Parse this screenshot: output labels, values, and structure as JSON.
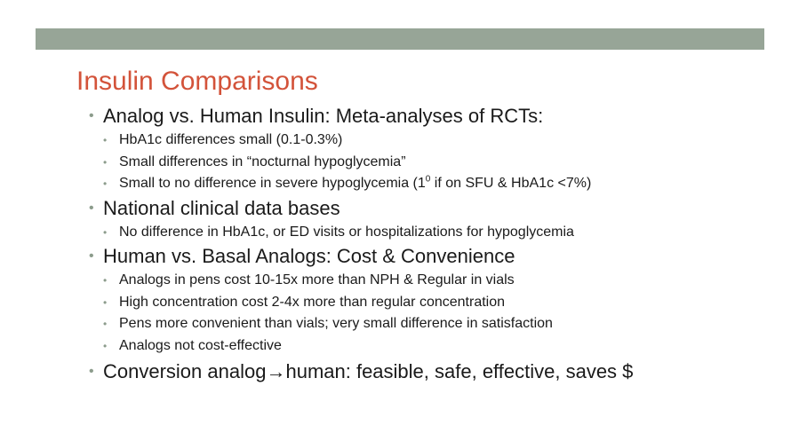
{
  "colors": {
    "bar": "#97a597",
    "title": "#d3533a",
    "text": "#1a1a1a",
    "bullet": "#8c9c8c"
  },
  "slide": {
    "title": "Insulin Comparisons",
    "bullet_char": "•",
    "b1": {
      "text": "Analog vs. Human Insulin: Meta-analyses of RCTs:",
      "s1": "HbA1c differences small (0.1-0.3%)",
      "s2": "Small differences in “nocturnal hypoglycemia”",
      "s3_pre": "Small to no difference in severe hypoglycemia (1",
      "s3_sup": "0",
      "s3_post": " if on SFU & HbA1c <7%)"
    },
    "b2": {
      "text": "National clinical data bases",
      "s1": "No difference in HbA1c, or ED visits or hospitalizations for hypoglycemia"
    },
    "b3": {
      "text": "Human vs. Basal Analogs: Cost & Convenience",
      "s1": "Analogs in pens cost 10-15x more than NPH & Regular in vials",
      "s2": "High concentration cost 2-4x more than regular concentration",
      "s3": "Pens more convenient than vials; very small difference in satisfaction",
      "s4": "Analogs not cost-effective"
    },
    "b4": {
      "pre": "Conversion analog",
      "arrow": "→",
      "post": "human: feasible, safe, effective, saves $"
    }
  }
}
